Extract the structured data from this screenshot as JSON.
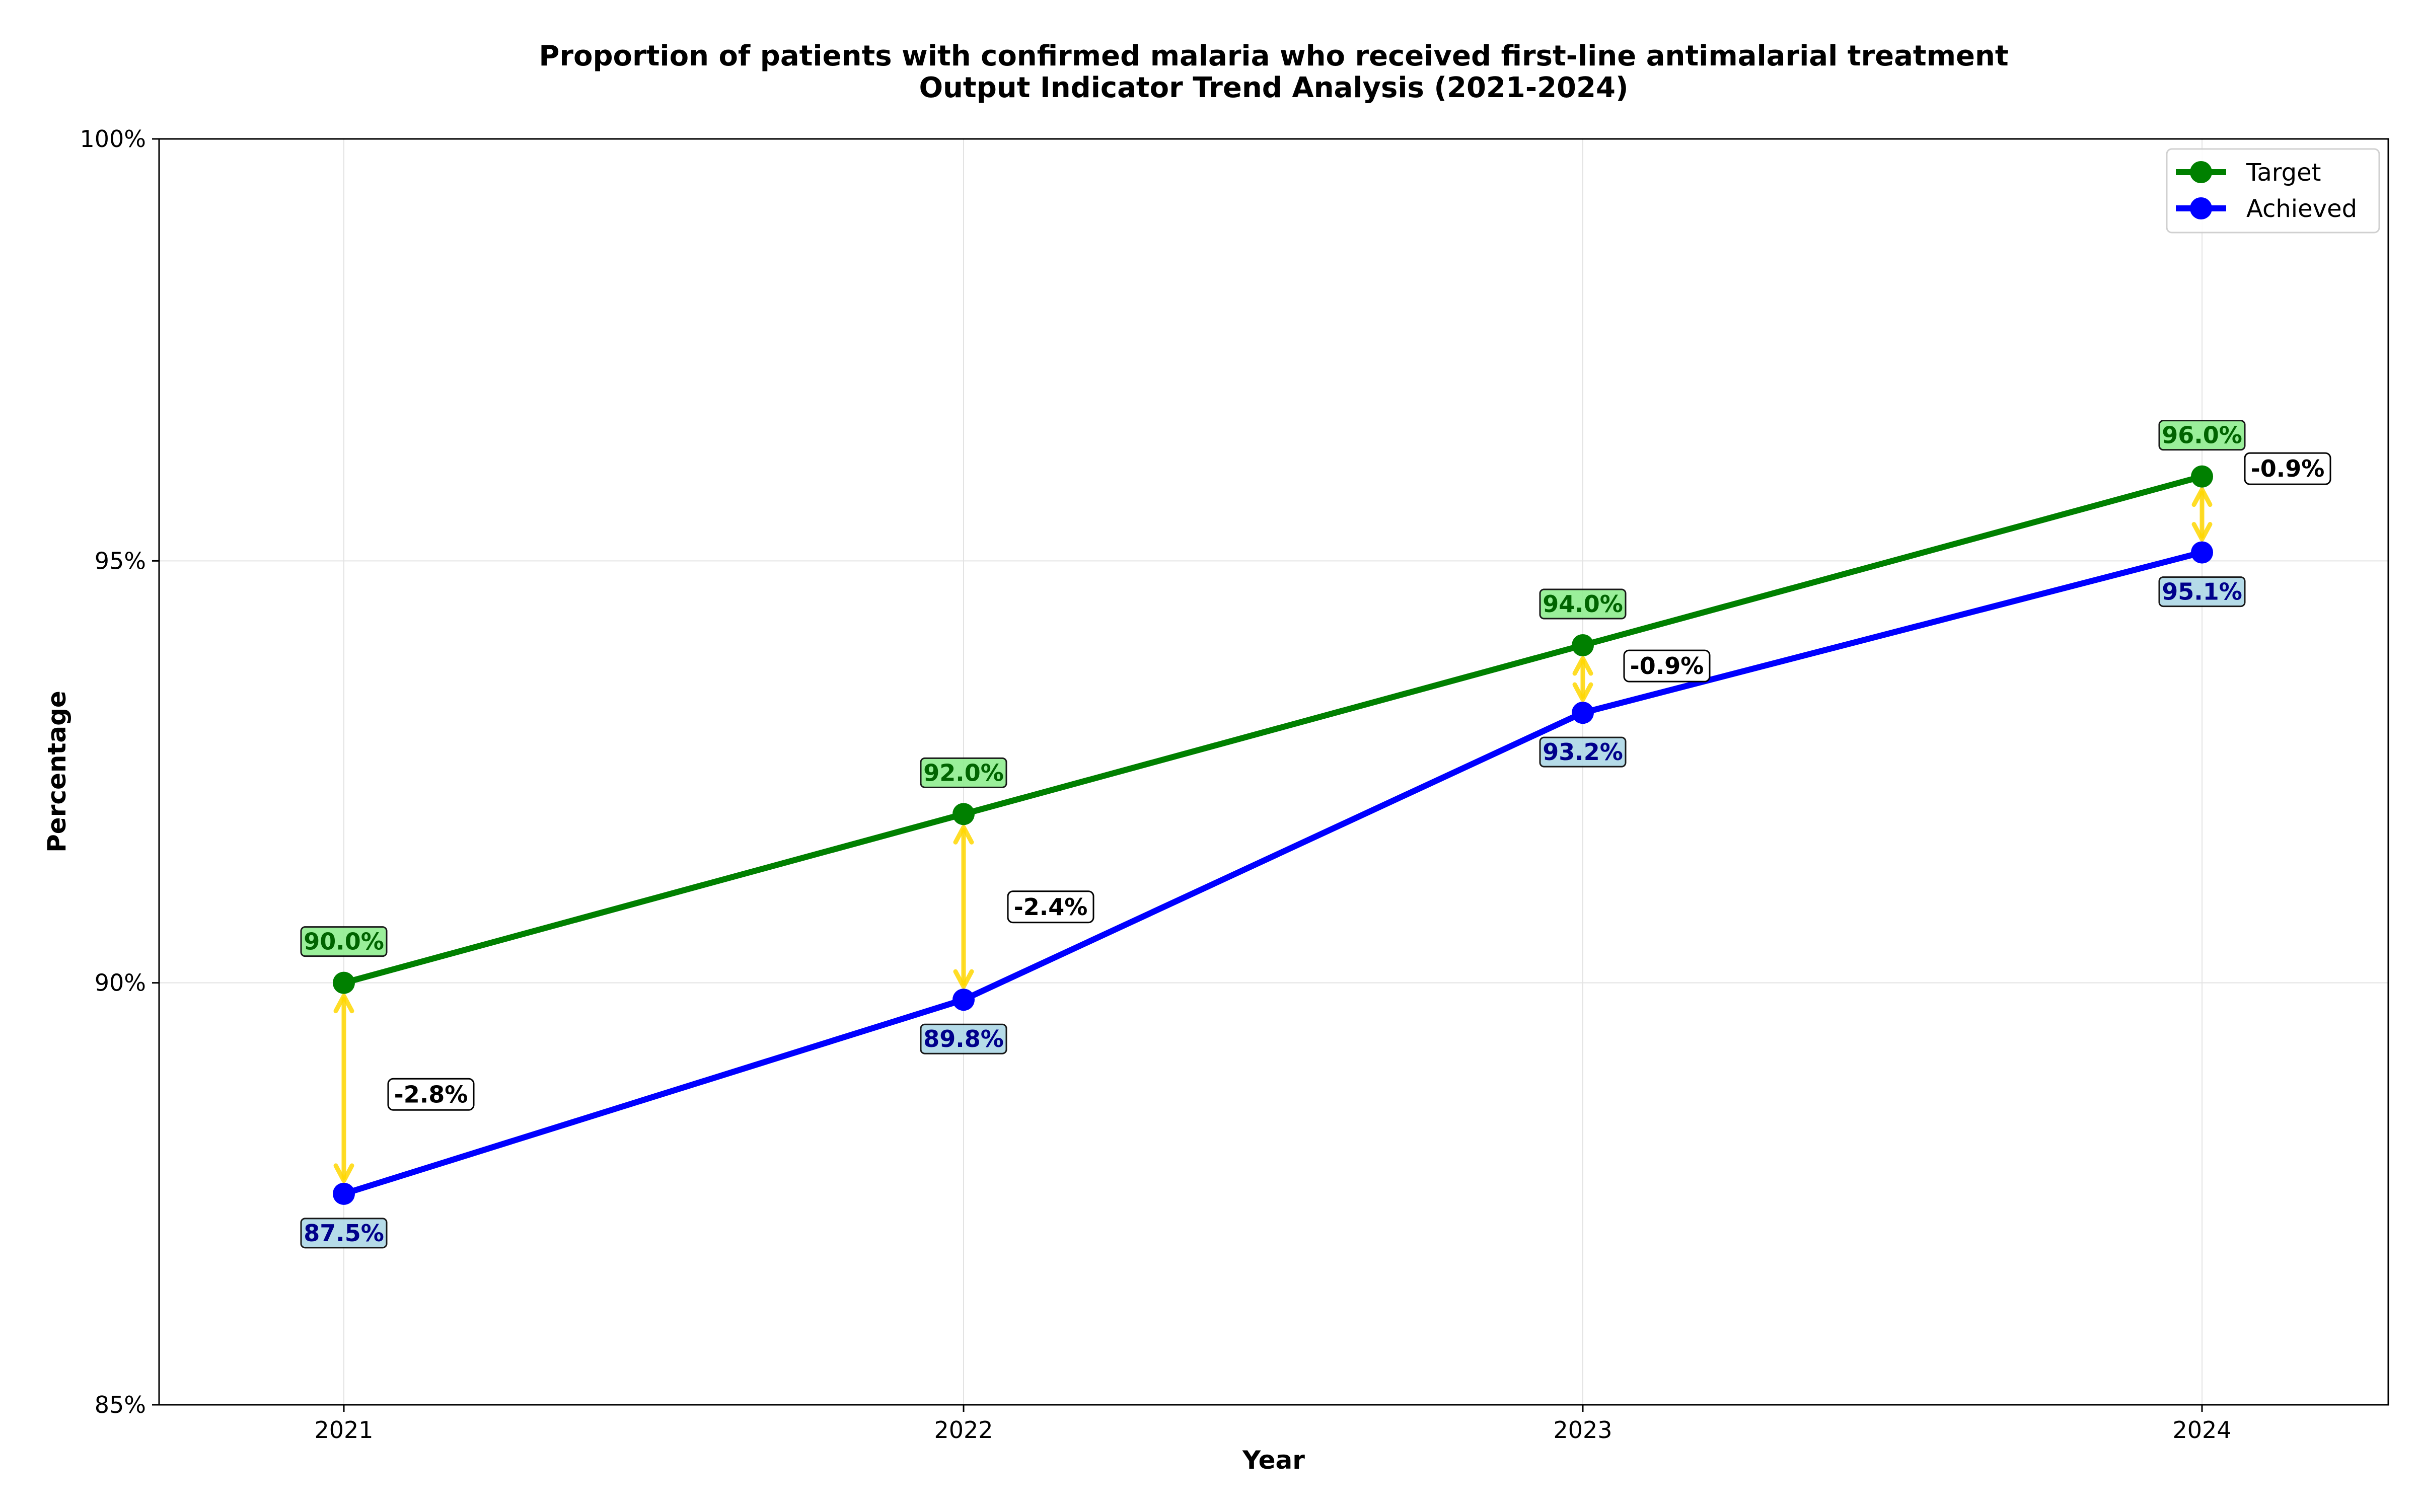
{
  "chart_data": {
    "type": "line",
    "title": "Proportion of patients with confirmed malaria who received first-line antimalarial treatment",
    "subtitle": "Output Indicator Trend Analysis (2021-2024)",
    "xlabel": "Year",
    "ylabel": "Percentage",
    "categories": [
      "2021",
      "2022",
      "2023",
      "2024"
    ],
    "ylim": [
      85,
      100
    ],
    "yticks": [
      85,
      90,
      95,
      100
    ],
    "ytick_labels": [
      "85%",
      "90%",
      "95%",
      "100%"
    ],
    "grid": true,
    "legend_position": "top-right",
    "series": [
      {
        "name": "Target",
        "color": "#008000",
        "values": [
          90.0,
          92.0,
          94.0,
          96.0
        ],
        "labels": [
          "90.0%",
          "92.0%",
          "94.0%",
          "96.0%"
        ],
        "label_bg": "#90EE90"
      },
      {
        "name": "Achieved",
        "color": "#0000FF",
        "values": [
          87.5,
          89.8,
          93.2,
          95.1
        ],
        "labels": [
          "87.5%",
          "89.8%",
          "93.2%",
          "95.1%"
        ],
        "label_bg": "#ADD8E6",
        "label_color": "#00008B"
      }
    ],
    "gaps": {
      "color": "#FFD700",
      "labels": [
        "-2.8%",
        "-2.4%",
        "-0.9%",
        "-0.9%"
      ]
    }
  }
}
